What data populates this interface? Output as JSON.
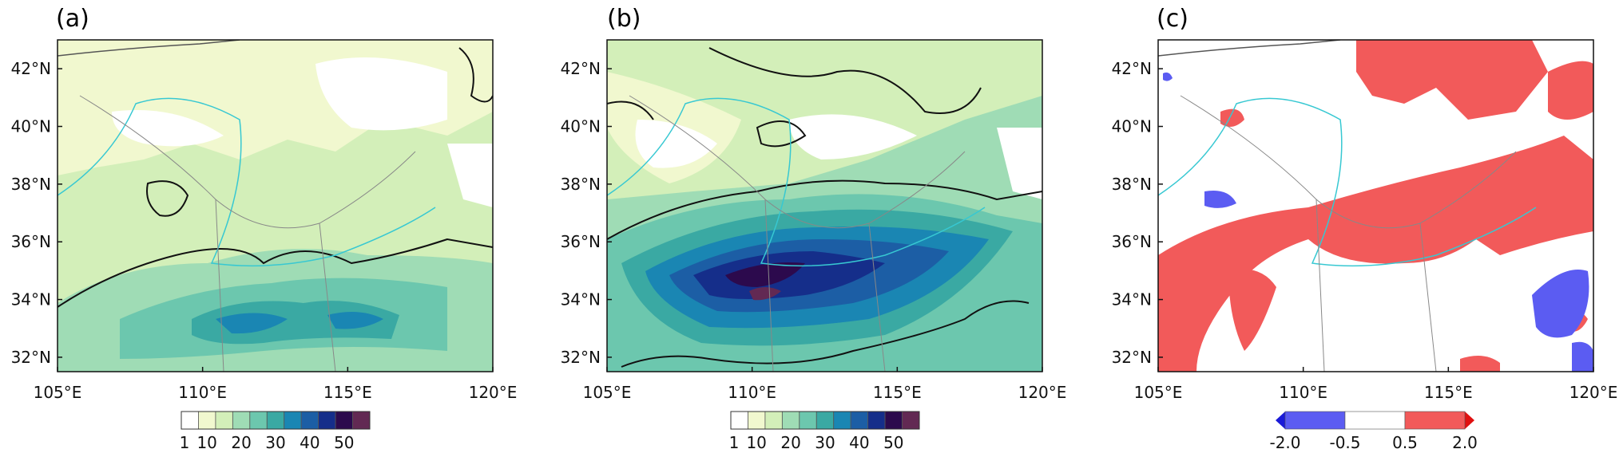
{
  "panels": [
    {
      "id": "a",
      "title": "(a)",
      "colorbar": {
        "labels": [
          "1",
          "10",
          "20",
          "30",
          "40",
          "50"
        ],
        "colors": [
          "#ffffff",
          "#f1f8cf",
          "#d3efb9",
          "#9fdcb5",
          "#6cc7ae",
          "#3aa9a3",
          "#1a86b3",
          "#1c5ea5",
          "#152e8a",
          "#2c0a4d",
          "#622953"
        ]
      }
    },
    {
      "id": "b",
      "title": "(b)",
      "colorbar": {
        "labels": [
          "1",
          "10",
          "20",
          "30",
          "40",
          "50"
        ],
        "colors": [
          "#ffffff",
          "#f1f8cf",
          "#d3efb9",
          "#9fdcb5",
          "#6cc7ae",
          "#3aa9a3",
          "#1a86b3",
          "#1c5ea5",
          "#152e8a",
          "#2c0a4d",
          "#622953"
        ]
      }
    },
    {
      "id": "c",
      "title": "(c)",
      "colorbar": {
        "labels": [
          "-2.0",
          "-0.5",
          "0.5",
          "2.0"
        ],
        "colors": [
          "#5b5cf2",
          "#ffffff",
          "#f25a5a"
        ],
        "extend_low_color": "#1b1bd8",
        "extend_high_color": "#e01010"
      }
    }
  ],
  "chart_data": [
    {
      "type": "heatmap",
      "panel": "(a)",
      "xlim": [
        105,
        120
      ],
      "ylim": [
        31.5,
        43
      ],
      "xticks": [
        "105°E",
        "110°E",
        "115°E",
        "120°E"
      ],
      "yticks": [
        "32°N",
        "34°N",
        "36°N",
        "38°N",
        "40°N",
        "42°N"
      ],
      "colorbar_levels": [
        1,
        10,
        20,
        30,
        40,
        50
      ]
    },
    {
      "type": "heatmap",
      "panel": "(b)",
      "xlim": [
        105,
        120
      ],
      "ylim": [
        31.5,
        43
      ],
      "xticks": [
        "105°E",
        "110°E",
        "115°E",
        "120°E"
      ],
      "yticks": [
        "32°N",
        "34°N",
        "36°N",
        "38°N",
        "40°N",
        "42°N"
      ],
      "colorbar_levels": [
        1,
        10,
        20,
        30,
        40,
        50
      ]
    },
    {
      "type": "heatmap",
      "panel": "(c)",
      "xlim": [
        105,
        120
      ],
      "ylim": [
        31.5,
        43
      ],
      "xticks": [
        "105°E",
        "110°E",
        "115°E",
        "120°E"
      ],
      "yticks": [
        "32°N",
        "34°N",
        "36°N",
        "38°N",
        "40°N",
        "42°N"
      ],
      "colorbar_levels": [
        -2.0,
        -0.5,
        0.5,
        2.0
      ]
    }
  ]
}
